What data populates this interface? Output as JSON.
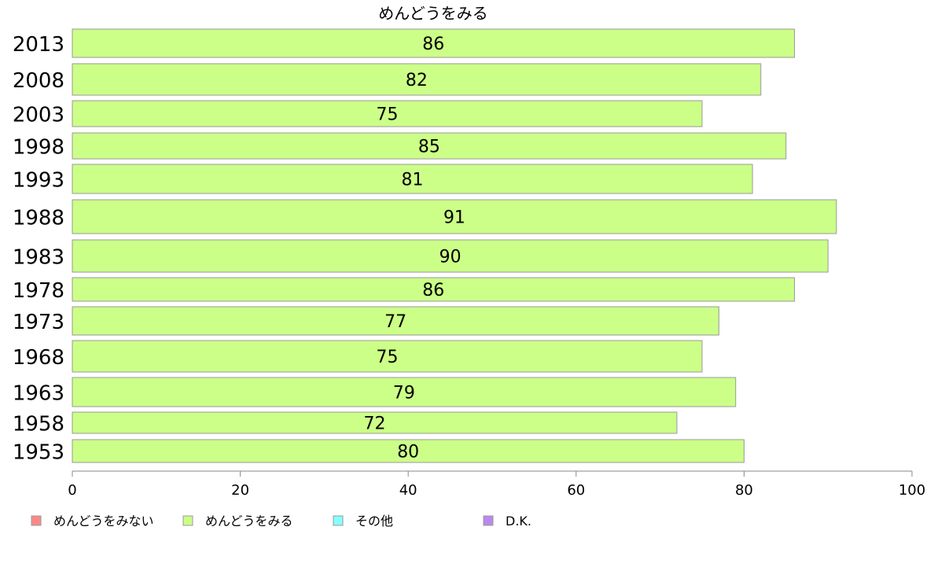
{
  "chart_data": {
    "type": "bar",
    "orientation": "horizontal",
    "title": "めんどうをみる",
    "xlabel": "",
    "ylabel": "",
    "xlim": [
      0,
      100
    ],
    "xticks": [
      0,
      20,
      40,
      60,
      80,
      100
    ],
    "categories": [
      "2013",
      "2008",
      "2003",
      "1998",
      "1993",
      "1988",
      "1983",
      "1978",
      "1973",
      "1968",
      "1963",
      "1958",
      "1953"
    ],
    "series": [
      {
        "name": "めんどうをみる",
        "color": "#ccff88",
        "values": [
          86,
          82,
          75,
          85,
          81,
          91,
          90,
          86,
          77,
          75,
          79,
          72,
          80
        ]
      }
    ],
    "legend": {
      "position": "bottom-left",
      "items": [
        {
          "label": "めんどうをみない",
          "color": "#ff8888"
        },
        {
          "label": "めんどうをみる",
          "color": "#ccff88"
        },
        {
          "label": "その他",
          "color": "#88ffff"
        },
        {
          "label": "D.K.",
          "color": "#bb88ee"
        }
      ]
    },
    "grid": false
  }
}
